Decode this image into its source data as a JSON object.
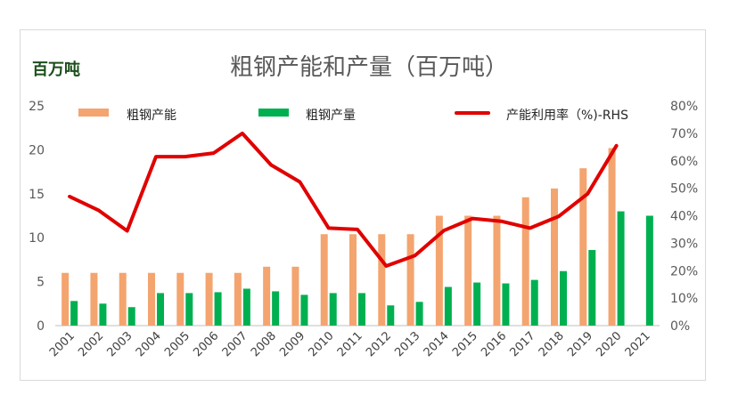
{
  "unit_label": "百万吨",
  "chart_data": {
    "type": "bar",
    "title": "粗钢产能和产量（百万吨）",
    "categories": [
      "2001",
      "2002",
      "2003",
      "2004",
      "2005",
      "2006",
      "2007",
      "2008",
      "2009",
      "2010",
      "2011",
      "2012",
      "2013",
      "2014",
      "2015",
      "2016",
      "2017",
      "2018",
      "2019",
      "2020",
      "2021"
    ],
    "series": [
      {
        "name": "粗钢产能",
        "type": "bar",
        "axis": "left",
        "color": "#f4a46f",
        "values": [
          6.0,
          6.0,
          6.0,
          6.0,
          6.0,
          6.0,
          6.0,
          6.7,
          6.7,
          10.4,
          10.4,
          10.4,
          10.4,
          12.5,
          12.5,
          12.5,
          14.6,
          15.6,
          17.9,
          20.2,
          null
        ]
      },
      {
        "name": "粗钢产量",
        "type": "bar",
        "axis": "left",
        "color": "#00b050",
        "values": [
          2.8,
          2.5,
          2.1,
          3.7,
          3.7,
          3.8,
          4.2,
          3.9,
          3.5,
          3.7,
          3.7,
          2.3,
          2.7,
          4.4,
          4.9,
          4.8,
          5.2,
          6.2,
          8.6,
          13.0,
          12.5
        ]
      },
      {
        "name": "产能利用率（%)-RHS",
        "type": "line",
        "axis": "right",
        "color": "#e00000",
        "values": [
          47,
          42,
          34.5,
          61.5,
          61.5,
          62.8,
          70,
          58.5,
          52.3,
          35.5,
          35,
          21.7,
          25.5,
          34.6,
          39,
          38,
          35.5,
          39.8,
          48,
          65.5,
          null
        ]
      }
    ],
    "y_left": {
      "min": 0,
      "max": 25,
      "ticks": [
        "0",
        "5",
        "10",
        "15",
        "20",
        "25"
      ]
    },
    "y_right": {
      "min": 0,
      "max": 80,
      "ticks": [
        "0%",
        "10%",
        "20%",
        "30%",
        "40%",
        "50%",
        "60%",
        "70%",
        "80%"
      ]
    },
    "grid": false,
    "legend_position": "top"
  }
}
